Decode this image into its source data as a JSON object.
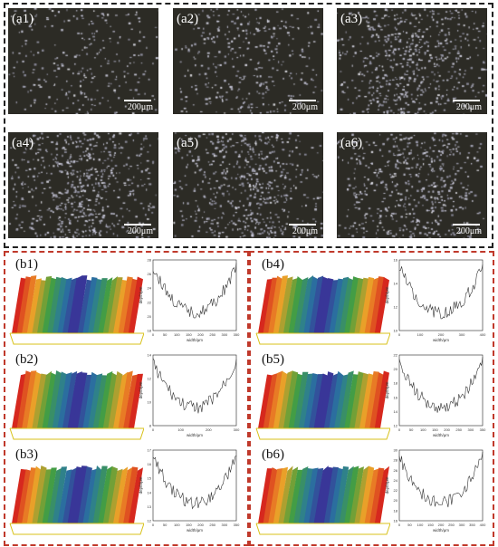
{
  "microscopy": {
    "panels": [
      {
        "label": "(a1)",
        "scale": "200μm"
      },
      {
        "label": "(a2)",
        "scale": "200μm"
      },
      {
        "label": "(a3)",
        "scale": "200μm"
      },
      {
        "label": "(a4)",
        "scale": "200μm"
      },
      {
        "label": "(a5)",
        "scale": "200μm"
      },
      {
        "label": "(a6)",
        "scale": "200μm"
      }
    ]
  },
  "profiles": {
    "panels": [
      {
        "label": "(b1)",
        "ylabel": "depth/μm",
        "xlabel": "width/μm",
        "xticks": [
          "0",
          "50",
          "100",
          "150",
          "200",
          "250",
          "300",
          "350"
        ],
        "yticks": [
          "18",
          "20",
          "22",
          "24",
          "26",
          "28"
        ]
      },
      {
        "label": "(b2)",
        "ylabel": "depth/μm",
        "xlabel": "width/μm",
        "xticks": [
          "0",
          "100",
          "200",
          "300"
        ],
        "yticks": [
          "8",
          "10",
          "12",
          "14"
        ]
      },
      {
        "label": "(b3)",
        "ylabel": "depth/μm",
        "xlabel": "width/μm",
        "xticks": [
          "0",
          "50",
          "100",
          "150",
          "200",
          "250",
          "300",
          "350"
        ],
        "yticks": [
          "12",
          "13",
          "14",
          "15",
          "16",
          "17"
        ]
      },
      {
        "label": "(b4)",
        "ylabel": "depth/μm",
        "xlabel": "width/μm",
        "xticks": [
          "0",
          "100",
          "200",
          "300",
          "400"
        ],
        "yticks": [
          "10",
          "12",
          "14",
          "16"
        ]
      },
      {
        "label": "(b5)",
        "ylabel": "depth/μm",
        "xlabel": "width/μm",
        "xticks": [
          "0",
          "50",
          "100",
          "150",
          "200",
          "250",
          "300",
          "350"
        ],
        "yticks": [
          "12",
          "14",
          "16",
          "18",
          "20",
          "22"
        ]
      },
      {
        "label": "(b6)",
        "ylabel": "depth/μm",
        "xlabel": "width/μm",
        "xticks": [
          "0",
          "50",
          "100",
          "150",
          "200",
          "250",
          "300",
          "350",
          "400"
        ],
        "yticks": [
          "16",
          "18",
          "20",
          "22",
          "24",
          "26",
          "28",
          "30"
        ]
      }
    ]
  }
}
